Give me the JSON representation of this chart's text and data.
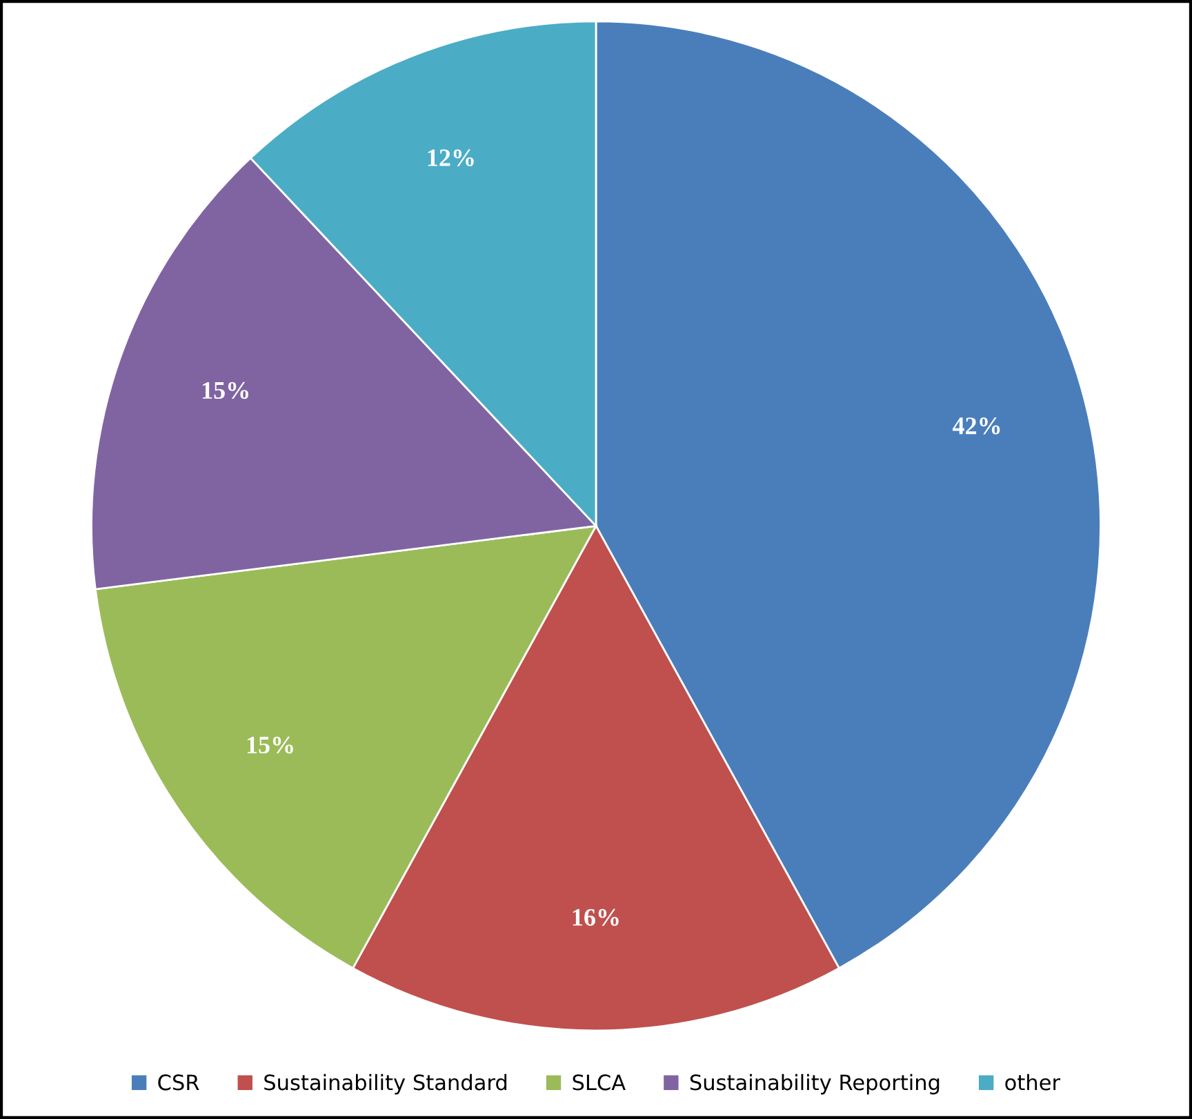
{
  "chart_data": {
    "type": "pie",
    "categories": [
      "CSR",
      "Sustainability Standard",
      "SLCA",
      "Sustainability Reporting",
      "other"
    ],
    "values": [
      42,
      16,
      15,
      15,
      12
    ],
    "colors": [
      "#4a7ebb",
      "#c0504d",
      "#9bbb59",
      "#8064a2",
      "#4bacc6"
    ],
    "value_labels": [
      "42%",
      "16%",
      "15%",
      "15%",
      "12%"
    ],
    "legend": "bottom"
  }
}
